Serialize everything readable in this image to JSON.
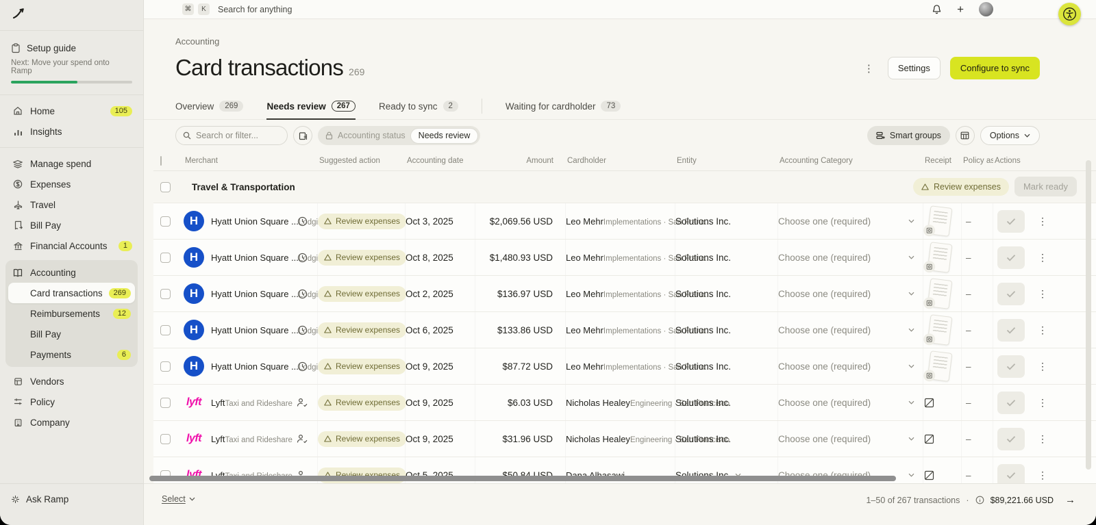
{
  "colors": {
    "accent_lime": "#d8e421",
    "badge_lime": "#e9ee55",
    "progress_green": "#2ba45e",
    "hyatt_blue": "#1650c8",
    "lyft_pink": "#f00faa",
    "warn_badge_bg": "#f1efd6",
    "warn_badge_text": "#6f6c35"
  },
  "topbar": {
    "search_placeholder": "Search for anything",
    "shortcut_cmd": "⌘",
    "shortcut_key": "K"
  },
  "sidebar": {
    "setup_guide": {
      "label": "Setup guide",
      "next_hint": "Next: Move your spend onto Ramp",
      "progress_pct": 55
    },
    "primary": [
      {
        "label": "Home",
        "badge": "105"
      },
      {
        "label": "Insights"
      }
    ],
    "spend": [
      {
        "label": "Manage spend"
      },
      {
        "label": "Expenses"
      },
      {
        "label": "Travel"
      },
      {
        "label": "Bill Pay"
      },
      {
        "label": "Financial Accounts",
        "badge": "1"
      }
    ],
    "accounting_group": {
      "label": "Accounting",
      "items": [
        {
          "label": "Card transactions",
          "badge": "269",
          "active": true
        },
        {
          "label": "Reimbursements",
          "badge": "12"
        },
        {
          "label": "Bill Pay"
        },
        {
          "label": "Payments",
          "badge": "6"
        }
      ]
    },
    "org": [
      {
        "label": "Vendors"
      },
      {
        "label": "Policy"
      },
      {
        "label": "Company"
      }
    ],
    "ask_ramp": "Ask Ramp"
  },
  "page": {
    "breadcrumb": "Accounting",
    "title": "Card transactions",
    "count": "269",
    "settings_label": "Settings",
    "configure_label": "Configure to sync"
  },
  "tabs": [
    {
      "label": "Overview",
      "count": "269"
    },
    {
      "label": "Needs review",
      "count": "267",
      "active": true
    },
    {
      "label": "Ready to sync",
      "count": "2"
    },
    {
      "label": "Waiting for cardholder",
      "count": "73"
    }
  ],
  "filters": {
    "search_placeholder": "Search or filter...",
    "chip_label": "Accounting status",
    "chip_value": "Needs review",
    "smart_groups_label": "Smart groups",
    "options_label": "Options"
  },
  "table": {
    "headers": [
      "Merchant",
      "Suggested action",
      "Accounting date",
      "Amount",
      "Cardholder",
      "Entity",
      "Accounting Category",
      "Receipt",
      "Policy ass",
      "Actions"
    ],
    "group": {
      "title": "Travel & Transportation",
      "review_label": "Review expenses",
      "mark_ready_label": "Mark ready"
    },
    "rows": [
      {
        "merchant": "Hyatt Union Square ...",
        "merchant_sub": "Lodging",
        "logo": "hyatt",
        "status_icon": "clock",
        "action": "Review expenses",
        "date": "Oct 3, 2025",
        "amount": "$2,069.56 USD",
        "cardholder": "Leo Mehr",
        "cardholder_sub": "Implementations · San Franc...",
        "entity": "Solutions Inc.",
        "entity_chevron": false,
        "category": "Choose one (required)",
        "receipt": "thumbnail",
        "policy": "–"
      },
      {
        "merchant": "Hyatt Union Square ...",
        "merchant_sub": "Lodging",
        "logo": "hyatt",
        "status_icon": "clock",
        "action": "Review expenses",
        "date": "Oct 8, 2025",
        "amount": "$1,480.93 USD",
        "cardholder": "Leo Mehr",
        "cardholder_sub": "Implementations · San Franc...",
        "entity": "Solutions Inc.",
        "entity_chevron": false,
        "category": "Choose one (required)",
        "receipt": "thumbnail",
        "policy": "–"
      },
      {
        "merchant": "Hyatt Union Square ...",
        "merchant_sub": "Lodging",
        "logo": "hyatt",
        "status_icon": "clock",
        "action": "Review expenses",
        "date": "Oct 2, 2025",
        "amount": "$136.97 USD",
        "cardholder": "Leo Mehr",
        "cardholder_sub": "Implementations · San Franc...",
        "entity": "Solutions Inc.",
        "entity_chevron": false,
        "category": "Choose one (required)",
        "receipt": "thumbnail",
        "policy": "–"
      },
      {
        "merchant": "Hyatt Union Square ...",
        "merchant_sub": "Lodging",
        "logo": "hyatt",
        "status_icon": "clock",
        "action": "Review expenses",
        "date": "Oct 6, 2025",
        "amount": "$133.86 USD",
        "cardholder": "Leo Mehr",
        "cardholder_sub": "Implementations · San Franc...",
        "entity": "Solutions Inc.",
        "entity_chevron": false,
        "category": "Choose one (required)",
        "receipt": "thumbnail",
        "policy": "–"
      },
      {
        "merchant": "Hyatt Union Square ...",
        "merchant_sub": "Lodging",
        "logo": "hyatt",
        "status_icon": "clock",
        "action": "Review expenses",
        "date": "Oct 9, 2025",
        "amount": "$87.72 USD",
        "cardholder": "Leo Mehr",
        "cardholder_sub": "Implementations · San Franc...",
        "entity": "Solutions Inc.",
        "entity_chevron": false,
        "category": "Choose one (required)",
        "receipt": "thumbnail",
        "policy": "–"
      },
      {
        "merchant": "Lyft",
        "merchant_sub": "Taxi and Rideshare",
        "logo": "lyft",
        "status_icon": "person-check",
        "action": "Review expenses",
        "date": "Oct 9, 2025",
        "amount": "$6.03 USD",
        "cardholder": "Nicholas Healey",
        "cardholder_sub": "Engineering · San Francisco",
        "entity": "Solutions Inc.",
        "entity_chevron": false,
        "category": "Choose one (required)",
        "receipt": "none",
        "policy": "–"
      },
      {
        "merchant": "Lyft",
        "merchant_sub": "Taxi and Rideshare",
        "logo": "lyft",
        "status_icon": "person-check",
        "action": "Review expenses",
        "date": "Oct 9, 2025",
        "amount": "$31.96 USD",
        "cardholder": "Nicholas Healey",
        "cardholder_sub": "Engineering · San Francisco",
        "entity": "Solutions Inc.",
        "entity_chevron": false,
        "category": "Choose one (required)",
        "receipt": "none",
        "policy": "–"
      },
      {
        "merchant": "Lyft",
        "merchant_sub": "Taxi and Rideshare",
        "logo": "lyft",
        "status_icon": "person-check",
        "action": "Review expenses",
        "date": "Oct 5, 2025",
        "amount": "$50.84 USD",
        "cardholder": "Dana Alhasawi",
        "cardholder_sub": "",
        "entity": "Solutions Inc.",
        "entity_chevron": true,
        "category": "Choose one (required)",
        "receipt": "none",
        "policy": "–"
      }
    ]
  },
  "footer": {
    "select_label": "Select",
    "range_text": "1–50 of 267 transactions",
    "total_amount": "$89,221.66 USD"
  }
}
